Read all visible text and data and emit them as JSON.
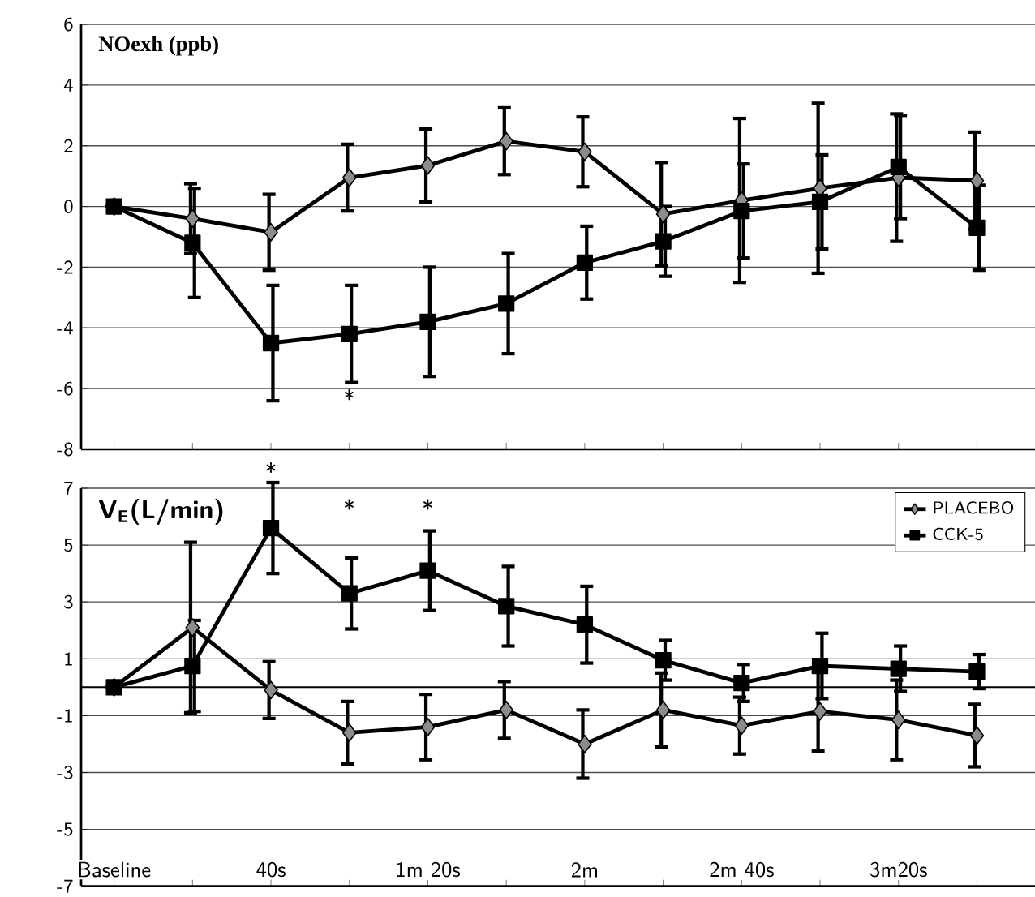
{
  "chart_data": [
    {
      "type": "line",
      "title": "**NOexh (ppb)**",
      "categories": [
        null,
        null,
        null,
        null,
        null,
        null,
        null,
        null,
        null,
        null,
        null,
        null
      ],
      "ylim": [
        -8,
        6
      ],
      "yticks": [
        -8,
        -6,
        -4,
        -2,
        0,
        2,
        4,
        6
      ],
      "grid": "y",
      "tick_labels": "y",
      "series": [
        {
          "color": "#8c8c8c",
          "marker": "diamond",
          "values": [
            0,
            -0.4,
            -0.85,
            0.95,
            1.35,
            2.15,
            1.8,
            -0.25,
            0.2,
            0.6,
            0.95,
            0.85
          ],
          "errors": [
            null,
            1.15,
            1.25,
            1.1,
            1.2,
            1.1,
            1.15,
            1.7,
            2.7,
            2.8,
            2.1,
            1.6
          ]
        },
        {
          "color": "#000000",
          "marker": "square",
          "values": [
            0,
            -1.2,
            -4.5,
            -4.2,
            -3.8,
            -3.2,
            -1.85,
            -1.15,
            -0.15,
            0.15,
            1.3,
            -0.7
          ],
          "errors": [
            null,
            1.8,
            1.9,
            1.6,
            1.8,
            1.65,
            1.2,
            1.15,
            1.55,
            1.55,
            1.7,
            1.4
          ]
        }
      ],
      "annotations": [
        "*"
      ]
    },
    {
      "type": "line",
      "title": "**V$_{E}$(L/min)**",
      "categories": [
        "Baseline",
        null,
        "40s",
        null,
        "1m 20s",
        null,
        "2m",
        null,
        "2m 40s",
        null,
        "3m20s",
        null
      ],
      "ylim": [
        -7,
        7
      ],
      "yticks": [
        -7,
        -5,
        -3,
        -1,
        1,
        3,
        5,
        7
      ],
      "grid": "y",
      "legend": "top right",
      "ref_lines": [
        {
          "axis": "y",
          "value": 0,
          "color": "#000000"
        }
      ],
      "series": [
        {
          "name": "PLACEBO",
          "color": "#8c8c8c",
          "marker": "diamond",
          "values": [
            0,
            2.1,
            -0.1,
            -1.6,
            -1.4,
            -0.8,
            -2.0,
            -0.8,
            -1.35,
            -0.85,
            -1.15,
            -1.7
          ],
          "errors": [
            null,
            3.0,
            1.0,
            1.1,
            1.15,
            1.0,
            1.2,
            1.3,
            1.0,
            1.4,
            1.4,
            1.1
          ]
        },
        {
          "name": "CCK-5",
          "color": "#000000",
          "marker": "square",
          "values": [
            0,
            0.75,
            5.6,
            3.3,
            4.1,
            2.85,
            2.2,
            0.95,
            0.15,
            0.75,
            0.65,
            0.55
          ],
          "errors": [
            null,
            1.6,
            1.6,
            1.25,
            1.4,
            1.4,
            1.35,
            0.7,
            0.65,
            1.15,
            0.8,
            0.6
          ]
        }
      ],
      "annotations": [
        "*",
        "*",
        "*"
      ]
    }
  ]
}
